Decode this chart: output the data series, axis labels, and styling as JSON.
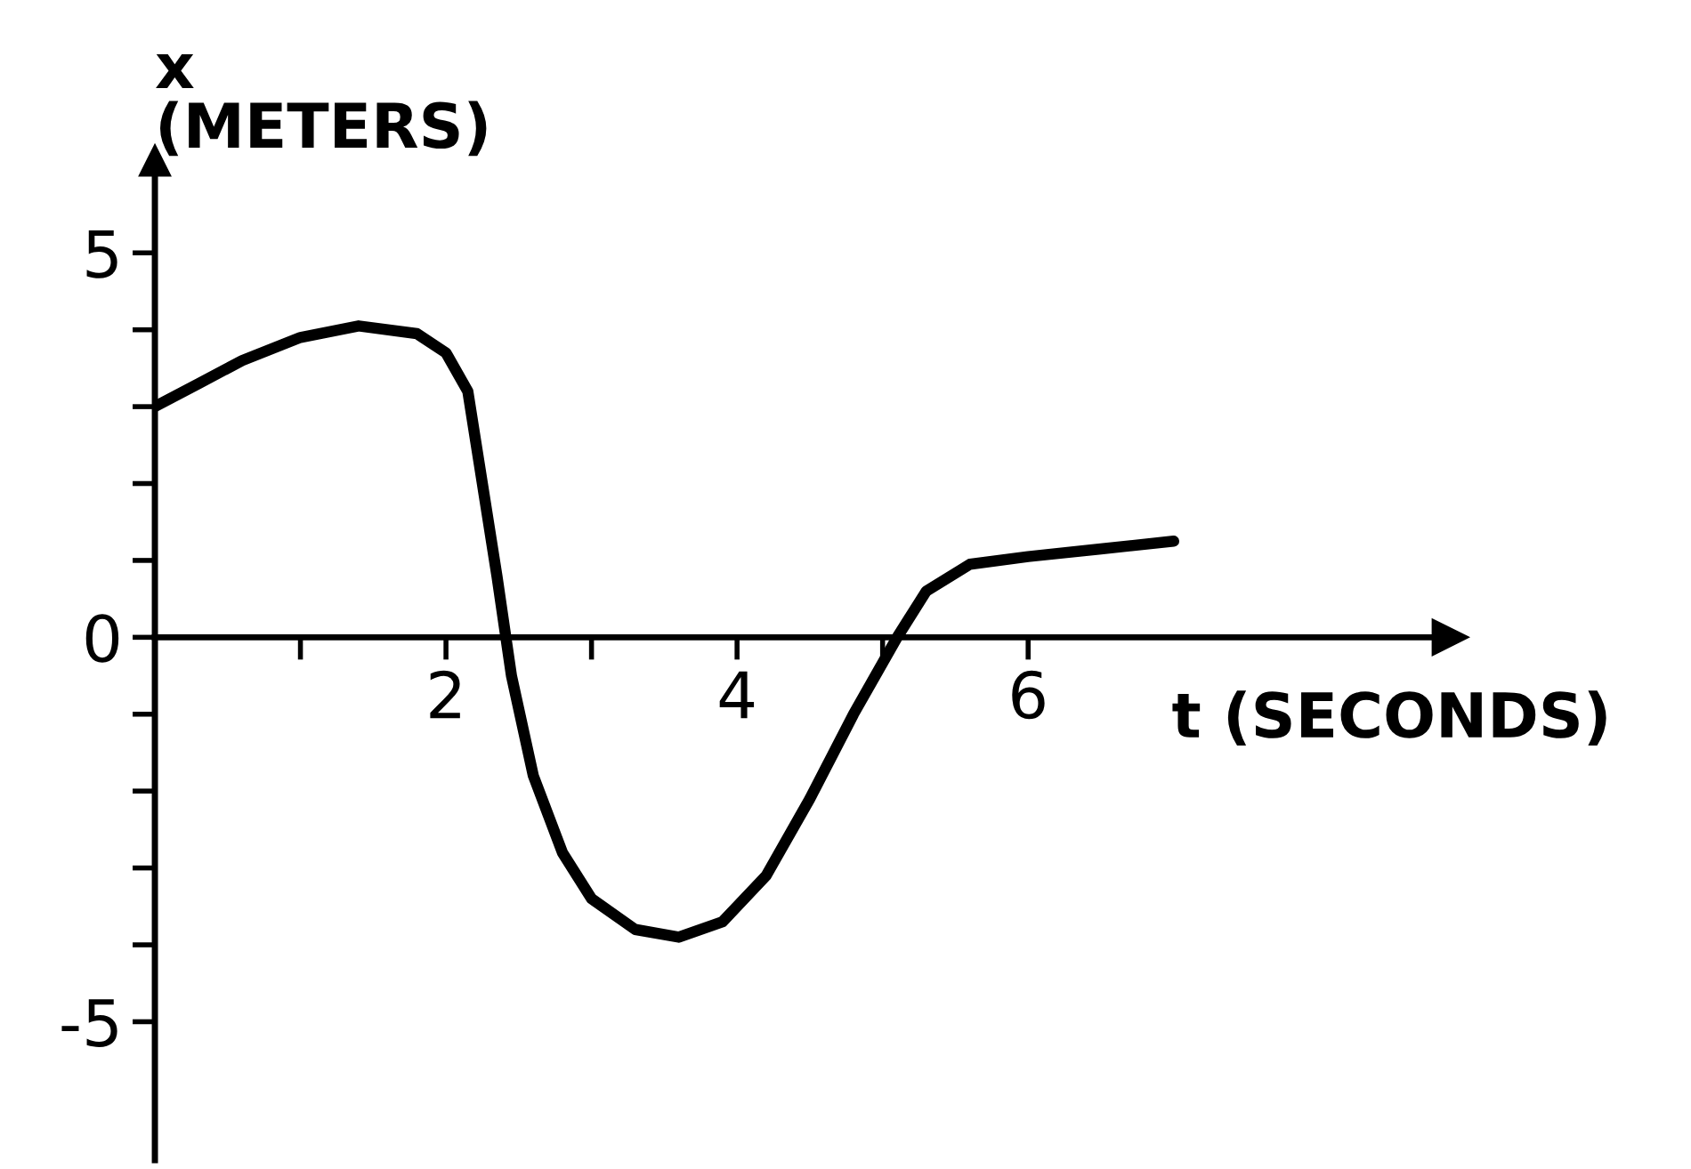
{
  "chart_data": {
    "type": "line",
    "xlabel": "t (SECONDS)",
    "ylabel": "x\n(METERS)",
    "x": [
      0,
      0.3,
      0.6,
      1.0,
      1.4,
      1.8,
      2.0,
      2.15,
      2.25,
      2.35,
      2.45,
      2.6,
      2.8,
      3.0,
      3.3,
      3.6,
      3.9,
      4.2,
      4.5,
      4.8,
      5.1,
      5.3,
      5.6,
      6.0,
      6.5,
      7.0
    ],
    "series": [
      {
        "color": "#000000",
        "values": [
          3.0,
          3.3,
          3.6,
          3.9,
          4.05,
          3.95,
          3.7,
          3.2,
          2.0,
          0.8,
          -0.5,
          -1.8,
          -2.8,
          -3.4,
          -3.8,
          -3.9,
          -3.7,
          -3.1,
          -2.1,
          -1.0,
          0.0,
          0.6,
          0.95,
          1.05,
          1.15,
          1.25
        ]
      }
    ],
    "xlim": [
      0,
      8.9
    ],
    "ylim": [
      -6.8,
      6.2
    ],
    "xticks": [
      {
        "value": 1,
        "label": null
      },
      2,
      {
        "value": 3,
        "label": null
      },
      4,
      {
        "value": 5,
        "label": null
      },
      6
    ],
    "yticks": [
      -5,
      {
        "value": -4,
        "label": null
      },
      {
        "value": -3,
        "label": null
      },
      {
        "value": -2,
        "label": null
      },
      {
        "value": -1,
        "label": null
      },
      0,
      {
        "value": 1,
        "label": null
      },
      {
        "value": 2,
        "label": null
      },
      {
        "value": 3,
        "label": null
      },
      {
        "value": 4,
        "label": null
      },
      5
    ],
    "grid": false,
    "legend": false,
    "marker": "none",
    "line_style": "solid"
  }
}
